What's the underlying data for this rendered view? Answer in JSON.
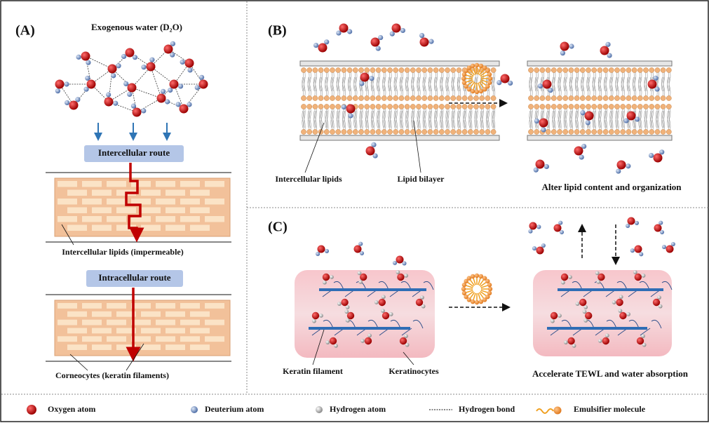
{
  "panel_a": {
    "label": "(A)",
    "title": "Exogenous water (D₂O)",
    "route_1": "Intercellular route",
    "caption_1": "Intercellular lipids (impermeable)",
    "route_2": "Intracellular route",
    "caption_2": "Corneocytes (keratin filaments)"
  },
  "panel_b": {
    "label": "(B)",
    "left_label_1": "Intercellular lipids",
    "left_label_2": "Lipid bilayer",
    "result": "Alter lipid content and organization"
  },
  "panel_c": {
    "label": "(C)",
    "left_label_1": "Keratin filament",
    "left_label_2": "Keratinocytes",
    "result": "Accelerate TEWL and water absorption"
  },
  "legend": [
    "Oxygen atom",
    "Deuterium atom",
    "Hydrogen atom",
    "Hydrogen bond",
    "Emulsifier molecule"
  ]
}
